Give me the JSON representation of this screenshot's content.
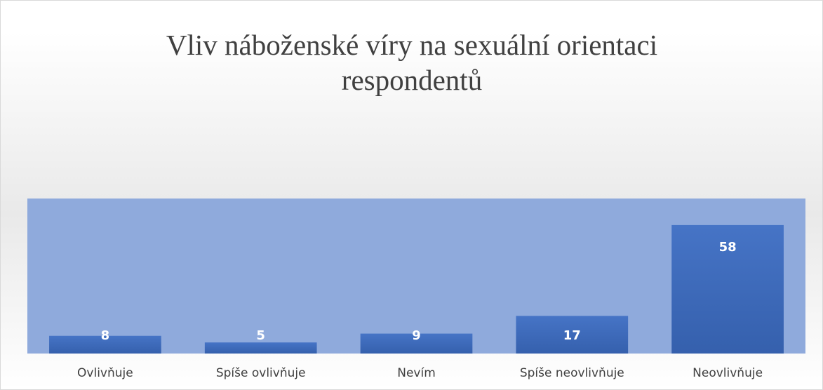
{
  "chart_data": {
    "type": "bar",
    "title": "Vliv náboženské víry na sexuální orientaci respondentů",
    "categories": [
      "Ovlivňuje",
      "Spíše ovlivňuje",
      "Nevím",
      "Spíše neovlivňuje",
      "Neovlivňuje"
    ],
    "values": [
      8,
      5,
      9,
      17,
      58
    ],
    "color": "#4472c4",
    "plot_color": "#8faadc",
    "ylim": [
      0,
      70
    ]
  }
}
